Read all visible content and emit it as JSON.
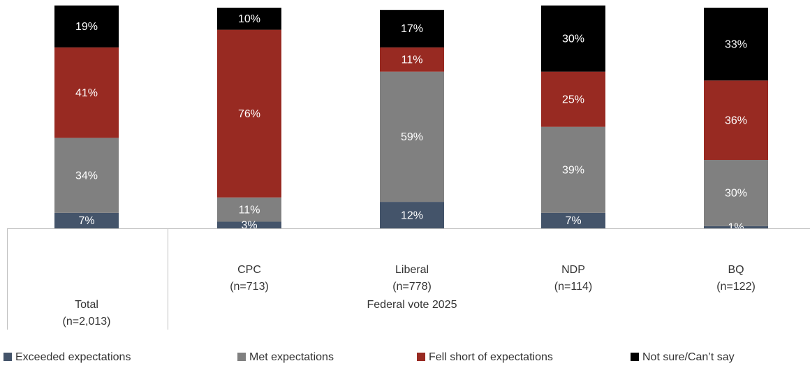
{
  "chart_data": {
    "type": "stacked_bar",
    "categories": [
      [
        "Total",
        "(n=2,013)"
      ],
      [
        "CPC",
        "(n=713)"
      ],
      [
        "Liberal",
        "(n=778)"
      ],
      [
        "NDP",
        "(n=114)"
      ],
      [
        "BQ",
        "(n=122)"
      ]
    ],
    "group_label": "Federal vote 2025",
    "series": [
      {
        "name": "Exceeded expectations",
        "color": "#44546a",
        "values": [
          7,
          3,
          12,
          7,
          1
        ],
        "value_labels": [
          "7%",
          "3%",
          "12%",
          "7%",
          "1%"
        ]
      },
      {
        "name": "Met expectations",
        "color": "#808080",
        "values": [
          34,
          11,
          59,
          39,
          30
        ],
        "value_labels": [
          "34%",
          "11%",
          "59%",
          "39%",
          "30%"
        ]
      },
      {
        "name": "Fell short of expectations",
        "color": "#982a22",
        "values": [
          41,
          76,
          11,
          25,
          36
        ],
        "value_labels": [
          "41%",
          "76%",
          "11%",
          "25%",
          "36%"
        ]
      },
      {
        "name": "Not sure/Can’t say",
        "color": "#000000",
        "values": [
          19,
          10,
          17,
          30,
          33
        ],
        "value_labels": [
          "19%",
          "10%",
          "17%",
          "30%",
          "33%"
        ]
      }
    ]
  }
}
